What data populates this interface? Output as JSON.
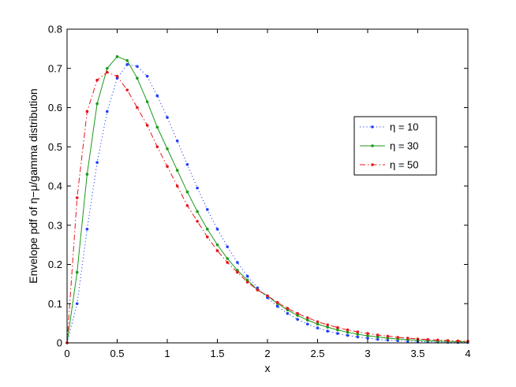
{
  "chart_data": {
    "type": "line",
    "xlabel": "x",
    "ylabel": "Envelope pdf of η−μ/gamma distribution",
    "xlim": [
      0,
      4
    ],
    "ylim": [
      0,
      0.8
    ],
    "xticks": [
      0,
      0.5,
      1,
      1.5,
      2,
      2.5,
      3,
      3.5,
      4
    ],
    "yticks": [
      0,
      0.1,
      0.2,
      0.3,
      0.4,
      0.5,
      0.6,
      0.7,
      0.8
    ],
    "xtick_labels": [
      "0",
      "0.5",
      "1",
      "1.5",
      "2",
      "2.5",
      "3",
      "3.5",
      "4"
    ],
    "ytick_labels": [
      "0",
      "0.1",
      "0.2",
      "0.3",
      "0.4",
      "0.5",
      "0.6",
      "0.7",
      "0.8"
    ],
    "grid": false,
    "legend_position": "right",
    "x": [
      0,
      0.1,
      0.2,
      0.3,
      0.4,
      0.5,
      0.6,
      0.7,
      0.8,
      0.9,
      1.0,
      1.1,
      1.2,
      1.3,
      1.4,
      1.5,
      1.6,
      1.7,
      1.8,
      1.9,
      2.0,
      2.1,
      2.2,
      2.3,
      2.4,
      2.5,
      2.6,
      2.7,
      2.8,
      2.9,
      3.0,
      3.1,
      3.2,
      3.3,
      3.4,
      3.5,
      3.6,
      3.7,
      3.8,
      3.9,
      4.0
    ],
    "series": [
      {
        "name": "η = 10",
        "color": "#1f3fff",
        "style": "dotted",
        "values": [
          0,
          0.1,
          0.29,
          0.46,
          0.59,
          0.675,
          0.71,
          0.705,
          0.68,
          0.63,
          0.575,
          0.515,
          0.455,
          0.395,
          0.34,
          0.29,
          0.245,
          0.205,
          0.17,
          0.14,
          0.115,
          0.093,
          0.075,
          0.06,
          0.048,
          0.038,
          0.03,
          0.024,
          0.019,
          0.015,
          0.012,
          0.009,
          0.007,
          0.0055,
          0.0043,
          0.0033,
          0.0025,
          0.0019,
          0.0015,
          0.0011,
          0.0008
        ]
      },
      {
        "name": "η = 30",
        "color": "#1a9a1a",
        "style": "solid",
        "values": [
          0,
          0.18,
          0.43,
          0.61,
          0.7,
          0.73,
          0.72,
          0.675,
          0.615,
          0.55,
          0.495,
          0.44,
          0.385,
          0.335,
          0.29,
          0.25,
          0.215,
          0.185,
          0.16,
          0.135,
          0.12,
          0.1,
          0.084,
          0.07,
          0.058,
          0.048,
          0.04,
          0.033,
          0.027,
          0.022,
          0.018,
          0.015,
          0.012,
          0.01,
          0.0082,
          0.0067,
          0.0055,
          0.0045,
          0.0037,
          0.003,
          0.0025
        ]
      },
      {
        "name": "η = 50",
        "color": "#e8141a",
        "style": "dashdot",
        "values": [
          0,
          0.37,
          0.59,
          0.67,
          0.69,
          0.68,
          0.645,
          0.6,
          0.555,
          0.5,
          0.45,
          0.4,
          0.35,
          0.31,
          0.27,
          0.235,
          0.205,
          0.18,
          0.155,
          0.135,
          0.12,
          0.103,
          0.088,
          0.075,
          0.064,
          0.054,
          0.046,
          0.039,
          0.033,
          0.028,
          0.024,
          0.02,
          0.017,
          0.014,
          0.012,
          0.01,
          0.0085,
          0.0072,
          0.006,
          0.005,
          0.0042
        ]
      }
    ]
  }
}
